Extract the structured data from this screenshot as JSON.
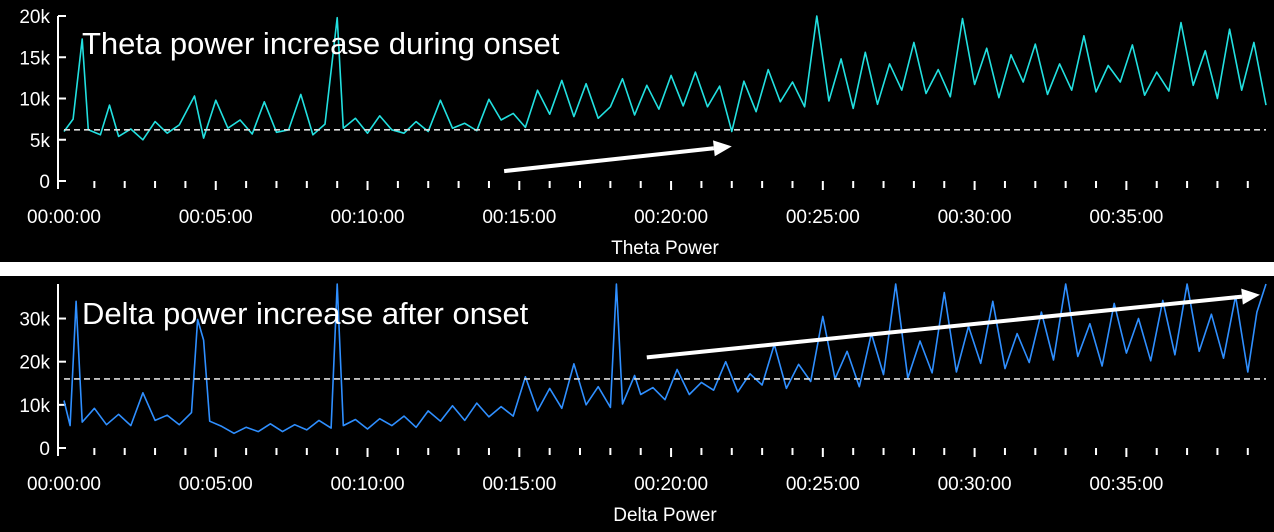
{
  "chart_data": [
    {
      "type": "line",
      "annotation": "Theta power increase during onset",
      "xlabel": "Theta Power",
      "x_tick_labels": [
        "00:00:00",
        "00:05:00",
        "00:10:00",
        "00:15:00",
        "00:20:00",
        "00:25:00",
        "00:30:00",
        "00:35:00"
      ],
      "y_tick_labels": [
        "0",
        "5k",
        "10k",
        "15k",
        "20k"
      ],
      "x_range_minutes": [
        0,
        39.6
      ],
      "ylim": [
        0,
        20000
      ],
      "threshold": 6200,
      "trend_arrow": {
        "from": {
          "t_min": 14.5,
          "value": 1200
        },
        "to": {
          "t_min": 22.0,
          "value": 4200
        }
      },
      "series": [
        {
          "color": "#22e0e0",
          "points": [
            [
              0,
              6000
            ],
            [
              0.3,
              7500
            ],
            [
              0.6,
              17200
            ],
            [
              0.8,
              6200
            ],
            [
              1.2,
              5600
            ],
            [
              1.5,
              9200
            ],
            [
              1.8,
              5400
            ],
            [
              2.2,
              6300
            ],
            [
              2.6,
              5000
            ],
            [
              3.0,
              7200
            ],
            [
              3.4,
              5800
            ],
            [
              3.8,
              6800
            ],
            [
              4.3,
              10300
            ],
            [
              4.6,
              5200
            ],
            [
              5.0,
              9800
            ],
            [
              5.4,
              6400
            ],
            [
              5.8,
              7400
            ],
            [
              6.2,
              5700
            ],
            [
              6.6,
              9600
            ],
            [
              7.0,
              5900
            ],
            [
              7.4,
              6200
            ],
            [
              7.8,
              10500
            ],
            [
              8.2,
              5600
            ],
            [
              8.6,
              6900
            ],
            [
              9.0,
              19800
            ],
            [
              9.2,
              6400
            ],
            [
              9.6,
              7600
            ],
            [
              10.0,
              5800
            ],
            [
              10.4,
              7900
            ],
            [
              10.8,
              6200
            ],
            [
              11.2,
              5800
            ],
            [
              11.6,
              7200
            ],
            [
              12.0,
              6000
            ],
            [
              12.4,
              9800
            ],
            [
              12.8,
              6400
            ],
            [
              13.2,
              7000
            ],
            [
              13.6,
              6100
            ],
            [
              14.0,
              9900
            ],
            [
              14.4,
              7400
            ],
            [
              14.8,
              8200
            ],
            [
              15.2,
              6500
            ],
            [
              15.6,
              11000
            ],
            [
              16.0,
              8100
            ],
            [
              16.4,
              12200
            ],
            [
              16.8,
              7800
            ],
            [
              17.2,
              11800
            ],
            [
              17.6,
              7600
            ],
            [
              18.0,
              9000
            ],
            [
              18.4,
              12400
            ],
            [
              18.8,
              8000
            ],
            [
              19.2,
              11600
            ],
            [
              19.6,
              8700
            ],
            [
              20.0,
              12800
            ],
            [
              20.4,
              9100
            ],
            [
              20.8,
              13200
            ],
            [
              21.2,
              9000
            ],
            [
              21.6,
              11500
            ],
            [
              22.0,
              6000
            ],
            [
              22.4,
              12100
            ],
            [
              22.8,
              8400
            ],
            [
              23.2,
              13500
            ],
            [
              23.6,
              9600
            ],
            [
              24.0,
              12000
            ],
            [
              24.4,
              9000
            ],
            [
              24.8,
              20000
            ],
            [
              25.2,
              9700
            ],
            [
              25.6,
              14800
            ],
            [
              26.0,
              8800
            ],
            [
              26.4,
              15600
            ],
            [
              26.8,
              9300
            ],
            [
              27.2,
              14200
            ],
            [
              27.6,
              11000
            ],
            [
              28.0,
              16800
            ],
            [
              28.4,
              10600
            ],
            [
              28.8,
              13500
            ],
            [
              29.2,
              10200
            ],
            [
              29.6,
              19700
            ],
            [
              30.0,
              11700
            ],
            [
              30.4,
              16100
            ],
            [
              30.8,
              10100
            ],
            [
              31.2,
              15300
            ],
            [
              31.6,
              12000
            ],
            [
              32.0,
              16600
            ],
            [
              32.4,
              10500
            ],
            [
              32.8,
              14200
            ],
            [
              33.2,
              11000
            ],
            [
              33.6,
              17600
            ],
            [
              34.0,
              10800
            ],
            [
              34.4,
              14000
            ],
            [
              34.8,
              12000
            ],
            [
              35.2,
              16500
            ],
            [
              35.6,
              10400
            ],
            [
              36.0,
              13200
            ],
            [
              36.4,
              10900
            ],
            [
              36.8,
              19200
            ],
            [
              37.2,
              11600
            ],
            [
              37.6,
              15800
            ],
            [
              38.0,
              10000
            ],
            [
              38.4,
              18400
            ],
            [
              38.8,
              11000
            ],
            [
              39.2,
              16800
            ],
            [
              39.6,
              9200
            ]
          ]
        }
      ]
    },
    {
      "type": "line",
      "annotation": "Delta power increase after onset",
      "xlabel": "Delta Power",
      "x_tick_labels": [
        "00:00:00",
        "00:05:00",
        "00:10:00",
        "00:15:00",
        "00:20:00",
        "00:25:00",
        "00:30:00",
        "00:35:00"
      ],
      "y_tick_labels": [
        "0",
        "10k",
        "20k",
        "30k"
      ],
      "x_range_minutes": [
        0,
        39.6
      ],
      "ylim": [
        0,
        38000
      ],
      "threshold": 16000,
      "trend_arrow": {
        "from": {
          "t_min": 19.2,
          "value": 21000
        },
        "to": {
          "t_min": 39.4,
          "value": 35500
        }
      },
      "series": [
        {
          "color": "#2f8fff",
          "points": [
            [
              0,
              11000
            ],
            [
              0.2,
              5200
            ],
            [
              0.4,
              34000
            ],
            [
              0.6,
              6000
            ],
            [
              1.0,
              9200
            ],
            [
              1.4,
              5400
            ],
            [
              1.8,
              7800
            ],
            [
              2.2,
              5200
            ],
            [
              2.6,
              12800
            ],
            [
              3.0,
              6400
            ],
            [
              3.4,
              7600
            ],
            [
              3.8,
              5400
            ],
            [
              4.2,
              8200
            ],
            [
              4.4,
              29800
            ],
            [
              4.6,
              25000
            ],
            [
              4.8,
              6200
            ],
            [
              5.2,
              5000
            ],
            [
              5.6,
              3400
            ],
            [
              6.0,
              4800
            ],
            [
              6.4,
              3800
            ],
            [
              6.8,
              5600
            ],
            [
              7.2,
              3800
            ],
            [
              7.6,
              5400
            ],
            [
              8.0,
              4200
            ],
            [
              8.4,
              6400
            ],
            [
              8.8,
              4600
            ],
            [
              9.0,
              38000
            ],
            [
              9.2,
              5200
            ],
            [
              9.6,
              6600
            ],
            [
              10.0,
              4400
            ],
            [
              10.4,
              6800
            ],
            [
              10.8,
              5200
            ],
            [
              11.2,
              7400
            ],
            [
              11.6,
              4800
            ],
            [
              12.0,
              8600
            ],
            [
              12.4,
              6200
            ],
            [
              12.8,
              9800
            ],
            [
              13.2,
              6400
            ],
            [
              13.6,
              10400
            ],
            [
              14.0,
              7200
            ],
            [
              14.4,
              9600
            ],
            [
              14.8,
              7400
            ],
            [
              15.2,
              16500
            ],
            [
              15.6,
              8600
            ],
            [
              16.0,
              13800
            ],
            [
              16.4,
              9200
            ],
            [
              16.8,
              19500
            ],
            [
              17.2,
              10000
            ],
            [
              17.6,
              14200
            ],
            [
              18.0,
              9400
            ],
            [
              18.2,
              38000
            ],
            [
              18.4,
              10200
            ],
            [
              18.8,
              16800
            ],
            [
              19.0,
              12400
            ],
            [
              19.4,
              14000
            ],
            [
              19.8,
              11200
            ],
            [
              20.2,
              18200
            ],
            [
              20.6,
              12400
            ],
            [
              21.0,
              15200
            ],
            [
              21.4,
              13400
            ],
            [
              21.8,
              20000
            ],
            [
              22.2,
              13000
            ],
            [
              22.6,
              17200
            ],
            [
              23.0,
              14600
            ],
            [
              23.4,
              24000
            ],
            [
              23.8,
              13800
            ],
            [
              24.2,
              19400
            ],
            [
              24.6,
              15400
            ],
            [
              25.0,
              30500
            ],
            [
              25.4,
              16000
            ],
            [
              25.8,
              22400
            ],
            [
              26.2,
              14200
            ],
            [
              26.6,
              26500
            ],
            [
              27.0,
              17000
            ],
            [
              27.4,
              38000
            ],
            [
              27.8,
              16200
            ],
            [
              28.2,
              24800
            ],
            [
              28.6,
              17400
            ],
            [
              29.0,
              36000
            ],
            [
              29.4,
              17600
            ],
            [
              29.8,
              28200
            ],
            [
              30.2,
              19600
            ],
            [
              30.6,
              34000
            ],
            [
              31.0,
              18400
            ],
            [
              31.4,
              26500
            ],
            [
              31.8,
              19800
            ],
            [
              32.2,
              31500
            ],
            [
              32.6,
              20400
            ],
            [
              33.0,
              38000
            ],
            [
              33.4,
              21200
            ],
            [
              33.8,
              28800
            ],
            [
              34.2,
              19000
            ],
            [
              34.6,
              33500
            ],
            [
              35.0,
              22000
            ],
            [
              35.4,
              30000
            ],
            [
              35.8,
              20200
            ],
            [
              36.2,
              34200
            ],
            [
              36.6,
              21600
            ],
            [
              37.0,
              38000
            ],
            [
              37.4,
              22400
            ],
            [
              37.8,
              31000
            ],
            [
              38.2,
              20800
            ],
            [
              38.6,
              35200
            ],
            [
              39.0,
              17600
            ],
            [
              39.3,
              31500
            ],
            [
              39.6,
              38000
            ]
          ]
        }
      ]
    }
  ],
  "colors": {
    "background": "#000000",
    "gap": "#ffffff",
    "text": "#ffffff",
    "threshold": "#dddddd",
    "arrow": "#ffffff"
  }
}
